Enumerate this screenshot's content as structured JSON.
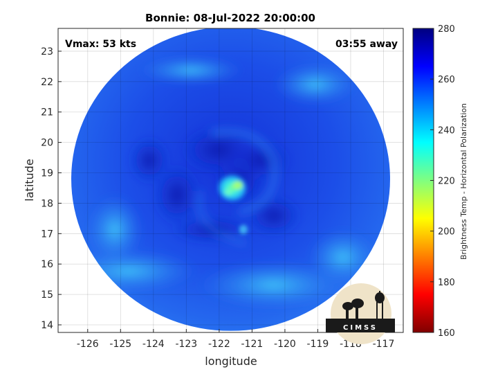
{
  "chart_data": {
    "type": "heatmap",
    "title": "Bonnie: 08-Jul-2022 20:00:00",
    "xlabel": "longitude",
    "ylabel": "latitude",
    "xlim": [
      -126.9,
      -116.4
    ],
    "ylim": [
      13.75,
      23.75
    ],
    "x_ticks": [
      -126,
      -125,
      -124,
      -123,
      -122,
      -121,
      -120,
      -119,
      -118,
      -117
    ],
    "x_tick_labels": [
      "-126",
      "-125",
      "-124",
      "-123",
      "-122",
      "-121",
      "-120",
      "-119",
      "-118",
      "-117"
    ],
    "y_ticks": [
      14,
      15,
      16,
      17,
      18,
      19,
      20,
      21,
      22,
      23
    ],
    "y_tick_labels": [
      "14",
      "15",
      "16",
      "17",
      "18",
      "19",
      "20",
      "21",
      "22",
      "23"
    ],
    "grid": true,
    "storm_center": {
      "lon": -121.6,
      "lat": 18.5
    },
    "swath_extent": {
      "lon": [
        -126.5,
        -116.8
      ],
      "lat": [
        13.8,
        23.8
      ]
    },
    "colorbar": {
      "label": "Brightness Temp - Horizontal Polarization",
      "range": [
        160,
        280
      ],
      "ticks": [
        160,
        180,
        200,
        220,
        240,
        260,
        280
      ],
      "tick_labels": [
        "160",
        "180",
        "200",
        "220",
        "240",
        "260",
        "280"
      ],
      "colormap": "jet"
    },
    "annotations": {
      "vmax": "Vmax: 53 kts",
      "time_away": "03:55 away"
    }
  },
  "logo": {
    "text": "CIMSS"
  }
}
